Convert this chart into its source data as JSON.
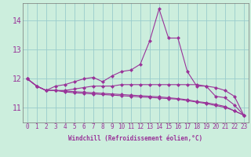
{
  "xlabel": "Windchill (Refroidissement éolien,°C)",
  "background_color": "#cceedd",
  "grid_color": "#99cccc",
  "line_color": "#993399",
  "hours": [
    0,
    1,
    2,
    3,
    4,
    5,
    6,
    7,
    8,
    9,
    10,
    11,
    12,
    13,
    14,
    15,
    16,
    17,
    18,
    19,
    20,
    21,
    22,
    23
  ],
  "series": [
    [
      12.0,
      11.75,
      11.6,
      11.75,
      11.8,
      11.9,
      12.0,
      12.05,
      11.9,
      12.1,
      12.25,
      12.3,
      12.5,
      13.3,
      14.4,
      13.4,
      13.4,
      12.25,
      11.75,
      11.75,
      11.4,
      11.35,
      11.1,
      10.75
    ],
    [
      12.0,
      11.75,
      11.6,
      11.6,
      11.6,
      11.65,
      11.7,
      11.75,
      11.75,
      11.75,
      11.8,
      11.8,
      11.8,
      11.8,
      11.8,
      11.8,
      11.8,
      11.8,
      11.8,
      11.75,
      11.7,
      11.6,
      11.4,
      10.75
    ],
    [
      12.0,
      11.75,
      11.6,
      11.6,
      11.58,
      11.56,
      11.54,
      11.52,
      11.5,
      11.48,
      11.46,
      11.44,
      11.42,
      11.4,
      11.38,
      11.35,
      11.32,
      11.28,
      11.22,
      11.18,
      11.12,
      11.05,
      10.9,
      10.75
    ],
    [
      12.0,
      11.75,
      11.6,
      11.6,
      11.55,
      11.52,
      11.5,
      11.48,
      11.46,
      11.44,
      11.42,
      11.4,
      11.38,
      11.36,
      11.34,
      11.32,
      11.3,
      11.25,
      11.2,
      11.15,
      11.08,
      11.02,
      10.9,
      10.75
    ]
  ],
  "ylim": [
    10.5,
    14.6
  ],
  "yticks": [
    11,
    12,
    13,
    14
  ],
  "xlim": [
    -0.5,
    23.5
  ],
  "xticks": [
    0,
    1,
    2,
    3,
    4,
    5,
    6,
    7,
    8,
    9,
    10,
    11,
    12,
    13,
    14,
    15,
    16,
    17,
    18,
    19,
    20,
    21,
    22,
    23
  ],
  "marker": "D",
  "marker_size": 2.0,
  "line_width": 0.8,
  "tick_fontsize": 5.5,
  "xlabel_fontsize": 5.5
}
